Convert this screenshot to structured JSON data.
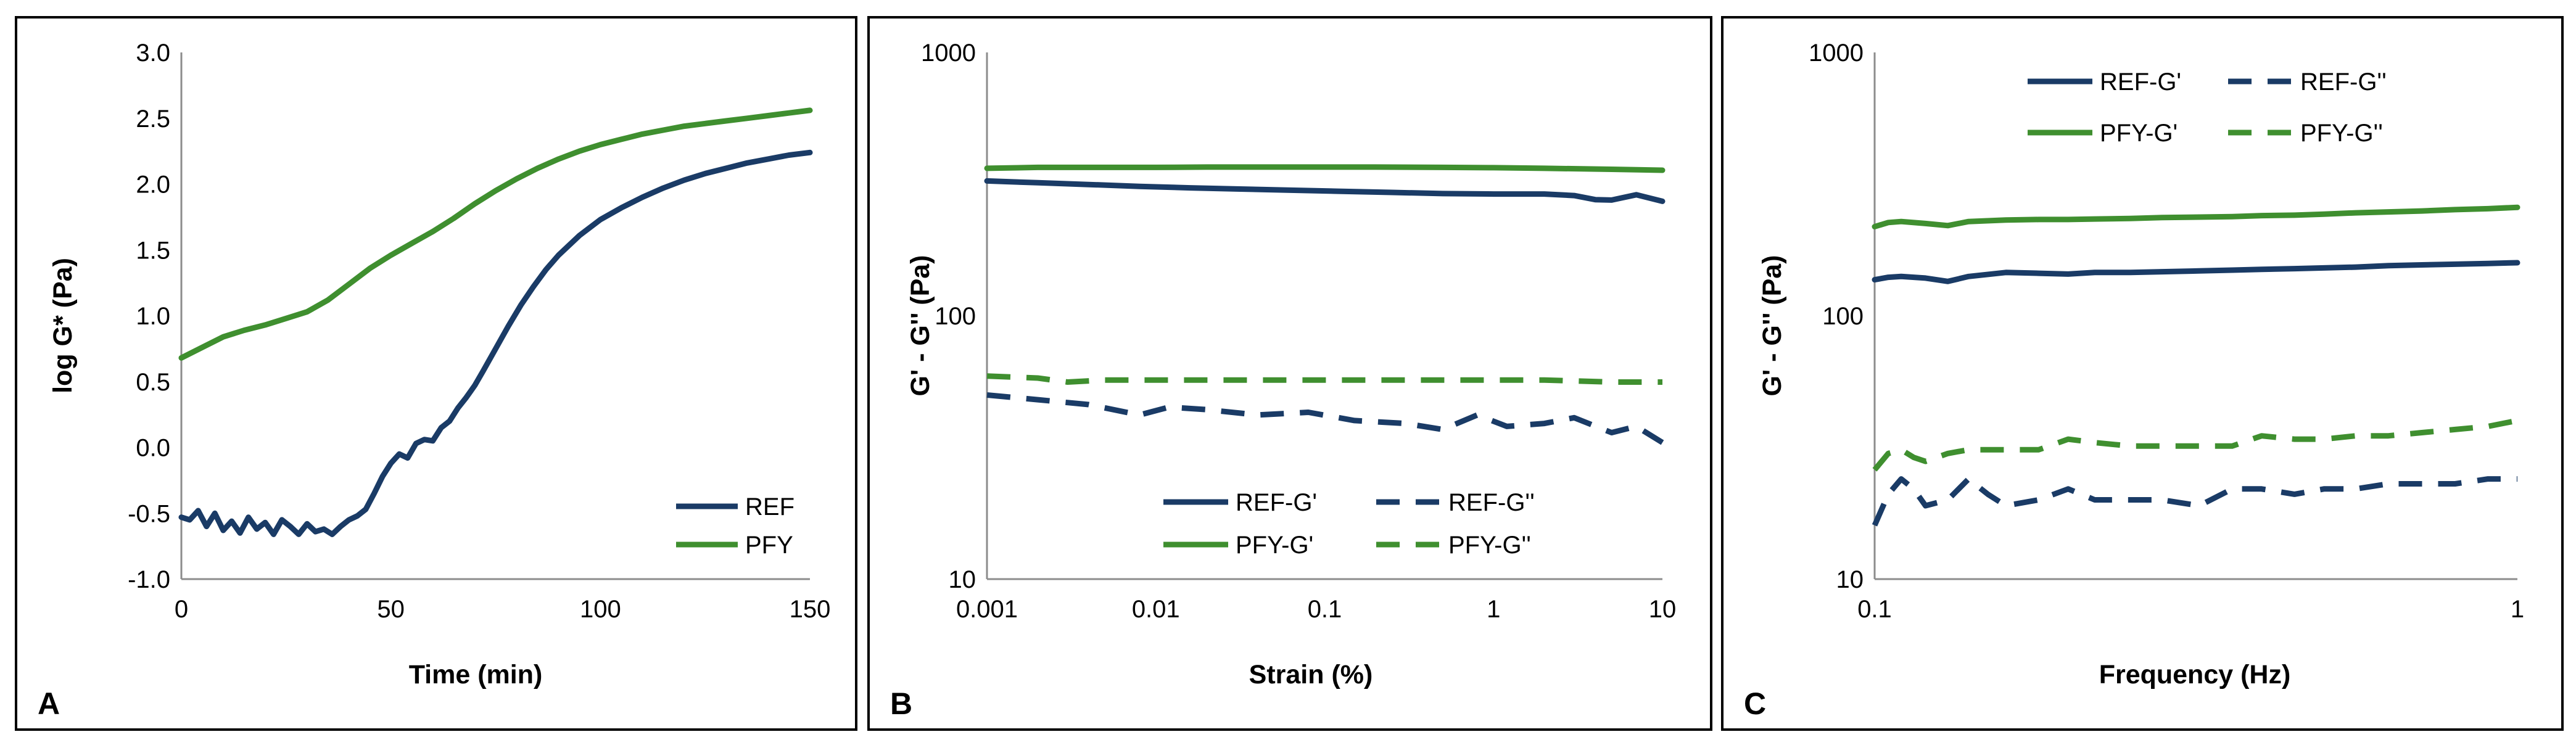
{
  "colors": {
    "ref": "#1a3b66",
    "pfy": "#3f8f2f",
    "axis": "#8c8c8c",
    "frame": "#000000"
  },
  "chart_data": [
    {
      "panel": "A",
      "type": "line",
      "xlabel": "Time (min)",
      "ylabel": "log G* (Pa)",
      "xscale": "linear",
      "yscale": "linear",
      "xlim": [
        0,
        150
      ],
      "ylim": [
        -1.0,
        3.0
      ],
      "xticks": [
        0,
        50,
        100,
        150
      ],
      "xtick_labels": [
        "0",
        "50",
        "100",
        "150"
      ],
      "yticks": [
        -1.0,
        -0.5,
        0.0,
        0.5,
        1.0,
        1.5,
        2.0,
        2.5,
        3.0
      ],
      "ytick_labels": [
        "-1.0",
        "-0.5",
        "0.0",
        "0.5",
        "1.0",
        "1.5",
        "2.0",
        "2.5",
        "3.0"
      ],
      "legend_position": "bottom-right",
      "series": [
        {
          "name": "REF",
          "color_key": "ref",
          "dash": false,
          "x": [
            0,
            2,
            4,
            6,
            8,
            10,
            12,
            14,
            16,
            18,
            20,
            22,
            24,
            26,
            28,
            30,
            32,
            34,
            36,
            38,
            40,
            42,
            44,
            46,
            48,
            50,
            52,
            54,
            56,
            58,
            60,
            62,
            64,
            66,
            68,
            70,
            72,
            75,
            78,
            81,
            84,
            87,
            90,
            95,
            100,
            105,
            110,
            115,
            120,
            125,
            130,
            135,
            140,
            145,
            150
          ],
          "y": [
            -0.53,
            -0.55,
            -0.48,
            -0.6,
            -0.5,
            -0.63,
            -0.56,
            -0.65,
            -0.53,
            -0.62,
            -0.57,
            -0.66,
            -0.55,
            -0.6,
            -0.66,
            -0.58,
            -0.64,
            -0.62,
            -0.66,
            -0.6,
            -0.55,
            -0.52,
            -0.47,
            -0.35,
            -0.22,
            -0.12,
            -0.05,
            -0.08,
            0.03,
            0.06,
            0.05,
            0.15,
            0.2,
            0.3,
            0.38,
            0.47,
            0.58,
            0.75,
            0.92,
            1.08,
            1.22,
            1.35,
            1.46,
            1.61,
            1.73,
            1.82,
            1.9,
            1.97,
            2.03,
            2.08,
            2.12,
            2.16,
            2.19,
            2.22,
            2.24
          ]
        },
        {
          "name": "PFY",
          "color_key": "pfy",
          "dash": false,
          "x": [
            0,
            5,
            10,
            15,
            20,
            25,
            30,
            35,
            40,
            45,
            50,
            55,
            60,
            65,
            70,
            75,
            80,
            85,
            90,
            95,
            100,
            105,
            110,
            115,
            120,
            125,
            130,
            135,
            140,
            145,
            150
          ],
          "y": [
            0.68,
            0.76,
            0.84,
            0.89,
            0.93,
            0.98,
            1.03,
            1.12,
            1.24,
            1.36,
            1.46,
            1.55,
            1.64,
            1.74,
            1.85,
            1.95,
            2.04,
            2.12,
            2.19,
            2.25,
            2.3,
            2.34,
            2.38,
            2.41,
            2.44,
            2.46,
            2.48,
            2.5,
            2.52,
            2.54,
            2.56
          ]
        }
      ]
    },
    {
      "panel": "B",
      "type": "line",
      "xlabel": "Strain (%)",
      "ylabel": "G' - G'' (Pa)",
      "xscale": "log",
      "yscale": "log",
      "xlim": [
        0.001,
        10
      ],
      "ylim": [
        10,
        1000
      ],
      "xticks": [
        0.001,
        0.01,
        0.1,
        1,
        10
      ],
      "xtick_labels": [
        "0.001",
        "0.01",
        "0.1",
        "1",
        "10"
      ],
      "yticks": [
        10,
        100,
        1000
      ],
      "ytick_labels": [
        "10",
        "100",
        "1000"
      ],
      "legend_position": "bottom-center",
      "series": [
        {
          "name": "REF-G'",
          "color_key": "ref",
          "dash": false,
          "x": [
            0.001,
            0.002,
            0.004,
            0.008,
            0.016,
            0.03,
            0.06,
            0.12,
            0.25,
            0.5,
            1,
            2,
            3,
            4,
            5,
            7,
            10
          ],
          "y": [
            325,
            320,
            315,
            310,
            306,
            303,
            300,
            297,
            294,
            291,
            290,
            290,
            286,
            276,
            275,
            288,
            272
          ]
        },
        {
          "name": "REF-G''",
          "color_key": "ref",
          "dash": true,
          "x": [
            0.001,
            0.002,
            0.004,
            0.008,
            0.012,
            0.02,
            0.04,
            0.08,
            0.15,
            0.3,
            0.5,
            0.8,
            1.2,
            2,
            3,
            5,
            7,
            10
          ],
          "y": [
            50,
            48,
            46,
            42,
            45,
            44,
            42,
            43,
            40,
            39,
            37,
            42,
            38,
            39,
            41,
            36,
            38,
            33
          ]
        },
        {
          "name": "PFY-G'",
          "color_key": "pfy",
          "dash": false,
          "x": [
            0.001,
            0.002,
            0.005,
            0.01,
            0.02,
            0.05,
            0.1,
            0.2,
            0.5,
            1,
            2,
            5,
            10
          ],
          "y": [
            363,
            366,
            366,
            366,
            367,
            367,
            367,
            367,
            366,
            365,
            363,
            360,
            357
          ]
        },
        {
          "name": "PFY-G''",
          "color_key": "pfy",
          "dash": true,
          "x": [
            0.001,
            0.002,
            0.003,
            0.005,
            0.01,
            0.02,
            0.05,
            0.1,
            0.2,
            0.5,
            1,
            2,
            5,
            10
          ],
          "y": [
            59,
            58,
            56,
            57,
            57,
            57,
            57,
            57,
            57,
            57,
            57,
            57,
            56,
            56
          ]
        }
      ]
    },
    {
      "panel": "C",
      "type": "line",
      "xlabel": "Frequency (Hz)",
      "ylabel": "G' - G'' (Pa)",
      "xscale": "log",
      "yscale": "log",
      "xlim": [
        0.1,
        1
      ],
      "ylim": [
        10,
        1000
      ],
      "xticks": [
        0.1,
        1
      ],
      "xtick_labels": [
        "0.1",
        "1"
      ],
      "yticks": [
        10,
        100,
        1000
      ],
      "ytick_labels": [
        "10",
        "100",
        "1000"
      ],
      "legend_position": "top-center",
      "series": [
        {
          "name": "REF-G'",
          "color_key": "ref",
          "dash": false,
          "x": [
            0.1,
            0.105,
            0.11,
            0.12,
            0.13,
            0.14,
            0.16,
            0.18,
            0.2,
            0.22,
            0.25,
            0.28,
            0.32,
            0.36,
            0.4,
            0.45,
            0.5,
            0.56,
            0.63,
            0.71,
            0.8,
            0.9,
            1
          ],
          "y": [
            137,
            140,
            141,
            139,
            135,
            141,
            146,
            145,
            144,
            146,
            146,
            147,
            148,
            149,
            150,
            151,
            152,
            153,
            155,
            156,
            157,
            158,
            159
          ]
        },
        {
          "name": "REF-G''",
          "color_key": "ref",
          "dash": true,
          "x": [
            0.1,
            0.105,
            0.11,
            0.115,
            0.12,
            0.13,
            0.14,
            0.15,
            0.16,
            0.18,
            0.2,
            0.22,
            0.25,
            0.28,
            0.32,
            0.36,
            0.4,
            0.45,
            0.5,
            0.56,
            0.63,
            0.71,
            0.8,
            0.9,
            1
          ],
          "y": [
            16,
            21,
            24,
            22,
            19,
            20,
            24,
            21,
            19,
            20,
            22,
            20,
            20,
            20,
            19,
            22,
            22,
            21,
            22,
            22,
            23,
            23,
            23,
            24,
            24
          ]
        },
        {
          "name": "PFY-G'",
          "color_key": "pfy",
          "dash": false,
          "x": [
            0.1,
            0.105,
            0.11,
            0.12,
            0.13,
            0.14,
            0.16,
            0.18,
            0.2,
            0.22,
            0.25,
            0.28,
            0.32,
            0.36,
            0.4,
            0.45,
            0.5,
            0.56,
            0.63,
            0.71,
            0.8,
            0.9,
            1
          ],
          "y": [
            218,
            226,
            228,
            224,
            220,
            228,
            231,
            232,
            232,
            233,
            234,
            236,
            237,
            238,
            240,
            241,
            243,
            246,
            248,
            250,
            253,
            255,
            258
          ]
        },
        {
          "name": "PFY-G''",
          "color_key": "pfy",
          "dash": true,
          "x": [
            0.1,
            0.105,
            0.11,
            0.115,
            0.12,
            0.13,
            0.14,
            0.16,
            0.18,
            0.2,
            0.22,
            0.25,
            0.28,
            0.32,
            0.36,
            0.4,
            0.45,
            0.5,
            0.56,
            0.63,
            0.71,
            0.8,
            0.9,
            1
          ],
          "y": [
            26,
            30,
            31,
            29,
            28,
            30,
            31,
            31,
            31,
            34,
            33,
            32,
            32,
            32,
            32,
            35,
            34,
            34,
            35,
            35,
            36,
            37,
            38,
            40
          ]
        }
      ]
    }
  ]
}
